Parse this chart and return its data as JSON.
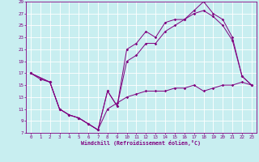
{
  "xlabel": "Windchill (Refroidissement éolien,°C)",
  "xlim": [
    -0.5,
    23.5
  ],
  "ylim": [
    7,
    29
  ],
  "xticks": [
    0,
    1,
    2,
    3,
    4,
    5,
    6,
    7,
    8,
    9,
    10,
    11,
    12,
    13,
    14,
    15,
    16,
    17,
    18,
    19,
    20,
    21,
    22,
    23
  ],
  "yticks": [
    7,
    9,
    11,
    13,
    15,
    17,
    19,
    21,
    23,
    25,
    27,
    29
  ],
  "bg_color": "#c8eef0",
  "grid_color": "#ffffff",
  "line_color": "#800080",
  "line1_x": [
    0,
    1,
    2,
    3,
    4,
    5,
    6,
    7,
    8,
    9,
    10,
    11,
    12,
    13,
    14,
    15,
    16,
    17,
    18,
    19,
    20,
    21,
    22,
    23
  ],
  "line1_y": [
    17,
    16,
    15.5,
    11,
    10,
    9.5,
    8.5,
    7.5,
    11,
    12,
    13,
    13.5,
    14,
    14,
    14,
    14.5,
    14.5,
    15,
    14,
    14.5,
    15,
    15,
    15.5,
    15
  ],
  "line2_x": [
    0,
    2,
    3,
    4,
    5,
    6,
    7,
    8,
    9,
    10,
    11,
    12,
    13,
    14,
    15,
    16,
    17,
    18,
    19,
    20,
    21,
    22,
    23
  ],
  "line2_y": [
    17,
    15.5,
    11,
    10,
    9.5,
    8.5,
    7.5,
    14,
    11.5,
    21,
    22,
    24,
    23,
    25.5,
    26,
    26,
    27.5,
    29,
    27,
    26,
    23,
    16.5,
    15
  ],
  "line3_x": [
    0,
    2,
    3,
    4,
    5,
    6,
    7,
    8,
    9,
    10,
    11,
    12,
    13,
    14,
    15,
    16,
    17,
    18,
    19,
    20,
    21,
    22,
    23
  ],
  "line3_y": [
    17,
    15.5,
    11,
    10,
    9.5,
    8.5,
    7.5,
    14,
    11.5,
    19,
    20,
    22,
    22,
    24,
    25,
    26,
    27,
    27.5,
    26.5,
    25,
    22.5,
    16.5,
    15
  ]
}
